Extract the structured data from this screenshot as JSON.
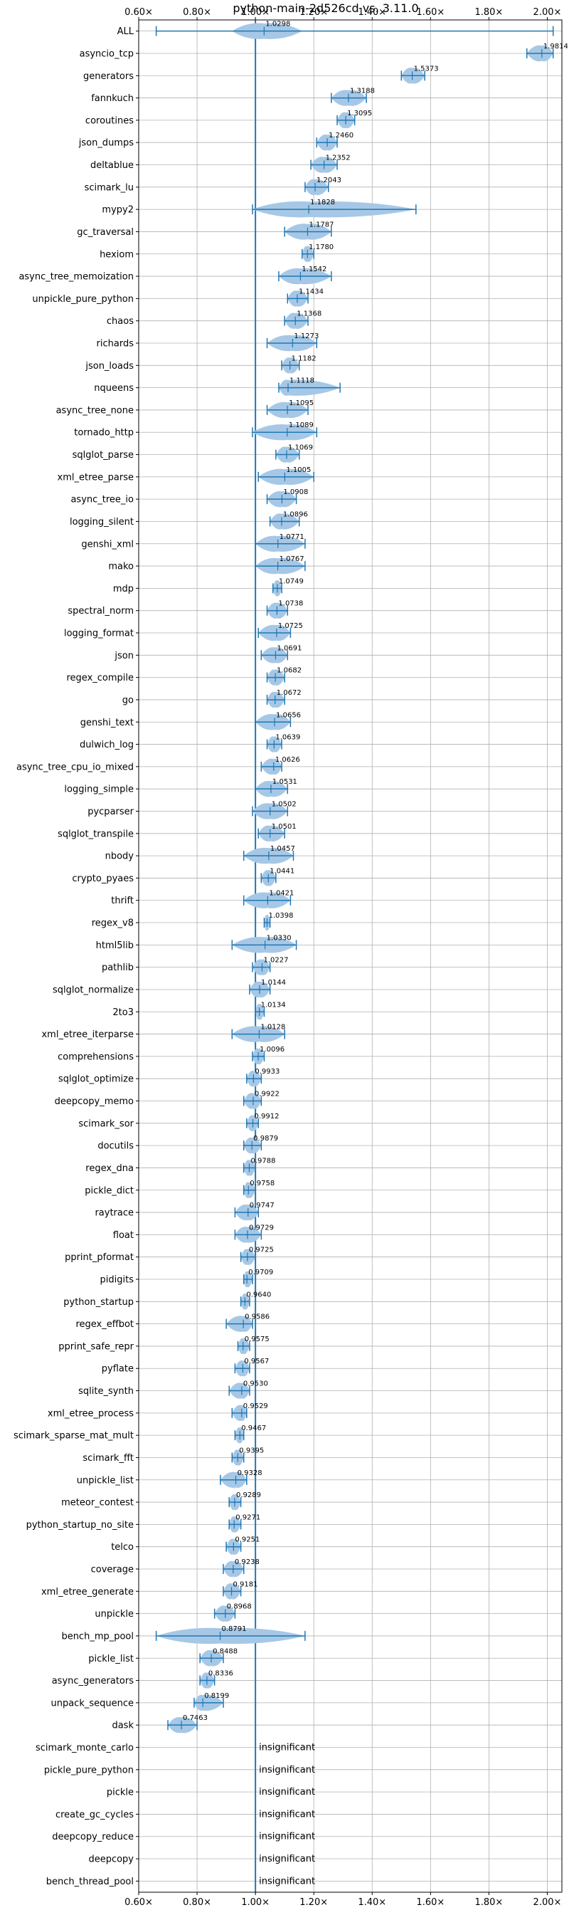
{
  "chart_data": {
    "type": "violin",
    "title": "python-main-2d526cd vs. 3.11.0",
    "xlabel": "",
    "ylabel": "",
    "xlim": [
      0.6,
      2.05
    ],
    "xticks": [
      0.6,
      0.8,
      1.0,
      1.2,
      1.4,
      1.6,
      1.8,
      2.0
    ],
    "xtick_labels": [
      "0.60×",
      "0.80×",
      "1.00×",
      "1.20×",
      "1.40×",
      "1.60×",
      "1.80×",
      "2.00×"
    ],
    "xticks_on_top": true,
    "reference_line": 1.0,
    "grid": true,
    "colors": {
      "violin": "#a6c8e6",
      "whisker": "#1f77b4",
      "reference": "#1f77b4",
      "grid": "#b0b0b0"
    },
    "insignificant_label": "insignificant",
    "benchmarks": [
      {
        "name": "ALL",
        "label": "1.0298",
        "median": 1.0298,
        "min": 0.66,
        "max": 2.02,
        "q1": 0.92,
        "q3": 1.16
      },
      {
        "name": "asyncio_tcp",
        "label": "1.9814",
        "median": 1.9814,
        "min": 1.93,
        "max": 2.02
      },
      {
        "name": "generators",
        "label": "1.5373",
        "median": 1.5373,
        "min": 1.5,
        "max": 1.58
      },
      {
        "name": "fannkuch",
        "label": "1.3188",
        "median": 1.3188,
        "min": 1.26,
        "max": 1.38
      },
      {
        "name": "coroutines",
        "label": "1.3095",
        "median": 1.3095,
        "min": 1.28,
        "max": 1.34
      },
      {
        "name": "json_dumps",
        "label": "1.2460",
        "median": 1.246,
        "min": 1.21,
        "max": 1.28
      },
      {
        "name": "deltablue",
        "label": "1.2352",
        "median": 1.2352,
        "min": 1.19,
        "max": 1.28
      },
      {
        "name": "scimark_lu",
        "label": "1.2043",
        "median": 1.2043,
        "min": 1.17,
        "max": 1.25
      },
      {
        "name": "mypy2",
        "label": "1.1828",
        "median": 1.1828,
        "min": 0.99,
        "max": 1.55
      },
      {
        "name": "gc_traversal",
        "label": "1.1787",
        "median": 1.1787,
        "min": 1.1,
        "max": 1.26
      },
      {
        "name": "hexiom",
        "label": "1.1780",
        "median": 1.178,
        "min": 1.16,
        "max": 1.2
      },
      {
        "name": "async_tree_memoization",
        "label": "1.1542",
        "median": 1.1542,
        "min": 1.08,
        "max": 1.26
      },
      {
        "name": "unpickle_pure_python",
        "label": "1.1434",
        "median": 1.1434,
        "min": 1.11,
        "max": 1.18
      },
      {
        "name": "chaos",
        "label": "1.1368",
        "median": 1.1368,
        "min": 1.1,
        "max": 1.18
      },
      {
        "name": "richards",
        "label": "1.1273",
        "median": 1.1273,
        "min": 1.04,
        "max": 1.21
      },
      {
        "name": "json_loads",
        "label": "1.1182",
        "median": 1.1182,
        "min": 1.09,
        "max": 1.15
      },
      {
        "name": "nqueens",
        "label": "1.1118",
        "median": 1.1118,
        "min": 1.08,
        "max": 1.29
      },
      {
        "name": "async_tree_none",
        "label": "1.1095",
        "median": 1.1095,
        "min": 1.04,
        "max": 1.18
      },
      {
        "name": "tornado_http",
        "label": "1.1089",
        "median": 1.1089,
        "min": 0.99,
        "max": 1.21
      },
      {
        "name": "sqlglot_parse",
        "label": "1.1069",
        "median": 1.1069,
        "min": 1.07,
        "max": 1.15
      },
      {
        "name": "xml_etree_parse",
        "label": "1.1005",
        "median": 1.1005,
        "min": 1.01,
        "max": 1.2
      },
      {
        "name": "async_tree_io",
        "label": "1.0908",
        "median": 1.0908,
        "min": 1.04,
        "max": 1.14
      },
      {
        "name": "logging_silent",
        "label": "1.0896",
        "median": 1.0896,
        "min": 1.05,
        "max": 1.15
      },
      {
        "name": "genshi_xml",
        "label": "1.0771",
        "median": 1.0771,
        "min": 1.0,
        "max": 1.17
      },
      {
        "name": "mako",
        "label": "1.0767",
        "median": 1.0767,
        "min": 1.0,
        "max": 1.17
      },
      {
        "name": "mdp",
        "label": "1.0749",
        "median": 1.0749,
        "min": 1.06,
        "max": 1.09
      },
      {
        "name": "spectral_norm",
        "label": "1.0738",
        "median": 1.0738,
        "min": 1.04,
        "max": 1.11
      },
      {
        "name": "logging_format",
        "label": "1.0725",
        "median": 1.0725,
        "min": 1.01,
        "max": 1.12
      },
      {
        "name": "json",
        "label": "1.0691",
        "median": 1.0691,
        "min": 1.02,
        "max": 1.11
      },
      {
        "name": "regex_compile",
        "label": "1.0682",
        "median": 1.0682,
        "min": 1.04,
        "max": 1.1
      },
      {
        "name": "go",
        "label": "1.0672",
        "median": 1.0672,
        "min": 1.04,
        "max": 1.1
      },
      {
        "name": "genshi_text",
        "label": "1.0656",
        "median": 1.0656,
        "min": 1.0,
        "max": 1.12
      },
      {
        "name": "dulwich_log",
        "label": "1.0639",
        "median": 1.0639,
        "min": 1.04,
        "max": 1.09
      },
      {
        "name": "async_tree_cpu_io_mixed",
        "label": "1.0626",
        "median": 1.0626,
        "min": 1.02,
        "max": 1.09
      },
      {
        "name": "logging_simple",
        "label": "1.0531",
        "median": 1.0531,
        "min": 1.0,
        "max": 1.11
      },
      {
        "name": "pycparser",
        "label": "1.0502",
        "median": 1.0502,
        "min": 0.99,
        "max": 1.11
      },
      {
        "name": "sqlglot_transpile",
        "label": "1.0501",
        "median": 1.0501,
        "min": 1.01,
        "max": 1.1
      },
      {
        "name": "nbody",
        "label": "1.0457",
        "median": 1.0457,
        "min": 0.96,
        "max": 1.13
      },
      {
        "name": "crypto_pyaes",
        "label": "1.0441",
        "median": 1.0441,
        "min": 1.02,
        "max": 1.07
      },
      {
        "name": "thrift",
        "label": "1.0421",
        "median": 1.0421,
        "min": 0.96,
        "max": 1.12
      },
      {
        "name": "regex_v8",
        "label": "1.0398",
        "median": 1.0398,
        "min": 1.03,
        "max": 1.05
      },
      {
        "name": "html5lib",
        "label": "1.0330",
        "median": 1.033,
        "min": 0.92,
        "max": 1.14
      },
      {
        "name": "pathlib",
        "label": "1.0227",
        "median": 1.0227,
        "min": 0.99,
        "max": 1.05
      },
      {
        "name": "sqlglot_normalize",
        "label": "1.0144",
        "median": 1.0144,
        "min": 0.98,
        "max": 1.05
      },
      {
        "name": "2to3",
        "label": "1.0134",
        "median": 1.0134,
        "min": 1.0,
        "max": 1.03
      },
      {
        "name": "xml_etree_iterparse",
        "label": "1.0128",
        "median": 1.0128,
        "min": 0.92,
        "max": 1.1
      },
      {
        "name": "comprehensions",
        "label": "1.0096",
        "median": 1.0096,
        "min": 0.99,
        "max": 1.03
      },
      {
        "name": "sqlglot_optimize",
        "label": "0.9933",
        "median": 0.9933,
        "min": 0.97,
        "max": 1.02
      },
      {
        "name": "deepcopy_memo",
        "label": "0.9922",
        "median": 0.9922,
        "min": 0.96,
        "max": 1.02
      },
      {
        "name": "scimark_sor",
        "label": "0.9912",
        "median": 0.9912,
        "min": 0.97,
        "max": 1.01
      },
      {
        "name": "docutils",
        "label": "0.9879",
        "median": 0.9879,
        "min": 0.96,
        "max": 1.02
      },
      {
        "name": "regex_dna",
        "label": "0.9788",
        "median": 0.9788,
        "min": 0.96,
        "max": 1.0
      },
      {
        "name": "pickle_dict",
        "label": "0.9758",
        "median": 0.9758,
        "min": 0.96,
        "max": 1.0
      },
      {
        "name": "raytrace",
        "label": "0.9747",
        "median": 0.9747,
        "min": 0.93,
        "max": 1.01
      },
      {
        "name": "float",
        "label": "0.9729",
        "median": 0.9729,
        "min": 0.93,
        "max": 1.02
      },
      {
        "name": "pprint_pformat",
        "label": "0.9725",
        "median": 0.9725,
        "min": 0.95,
        "max": 1.0
      },
      {
        "name": "pidigits",
        "label": "0.9709",
        "median": 0.9709,
        "min": 0.96,
        "max": 0.99
      },
      {
        "name": "python_startup",
        "label": "0.9640",
        "median": 0.964,
        "min": 0.95,
        "max": 0.98
      },
      {
        "name": "regex_effbot",
        "label": "0.9586",
        "median": 0.9586,
        "min": 0.9,
        "max": 0.99
      },
      {
        "name": "pprint_safe_repr",
        "label": "0.9575",
        "median": 0.9575,
        "min": 0.94,
        "max": 0.98
      },
      {
        "name": "pyflate",
        "label": "0.9567",
        "median": 0.9567,
        "min": 0.93,
        "max": 0.98
      },
      {
        "name": "sqlite_synth",
        "label": "0.9530",
        "median": 0.953,
        "min": 0.91,
        "max": 0.98
      },
      {
        "name": "xml_etree_process",
        "label": "0.9529",
        "median": 0.9529,
        "min": 0.92,
        "max": 0.97
      },
      {
        "name": "scimark_sparse_mat_mult",
        "label": "0.9467",
        "median": 0.9467,
        "min": 0.93,
        "max": 0.96
      },
      {
        "name": "scimark_fft",
        "label": "0.9395",
        "median": 0.9395,
        "min": 0.92,
        "max": 0.96
      },
      {
        "name": "unpickle_list",
        "label": "0.9328",
        "median": 0.9328,
        "min": 0.88,
        "max": 0.97
      },
      {
        "name": "meteor_contest",
        "label": "0.9289",
        "median": 0.9289,
        "min": 0.91,
        "max": 0.95
      },
      {
        "name": "python_startup_no_site",
        "label": "0.9271",
        "median": 0.9271,
        "min": 0.91,
        "max": 0.95
      },
      {
        "name": "telco",
        "label": "0.9251",
        "median": 0.9251,
        "min": 0.9,
        "max": 0.95
      },
      {
        "name": "coverage",
        "label": "0.9238",
        "median": 0.9238,
        "min": 0.89,
        "max": 0.96
      },
      {
        "name": "xml_etree_generate",
        "label": "0.9181",
        "median": 0.9181,
        "min": 0.89,
        "max": 0.95
      },
      {
        "name": "unpickle",
        "label": "0.8968",
        "median": 0.8968,
        "min": 0.86,
        "max": 0.93
      },
      {
        "name": "bench_mp_pool",
        "label": "0.8791",
        "median": 0.8791,
        "min": 0.66,
        "max": 1.17
      },
      {
        "name": "pickle_list",
        "label": "0.8488",
        "median": 0.8488,
        "min": 0.81,
        "max": 0.89
      },
      {
        "name": "async_generators",
        "label": "0.8336",
        "median": 0.8336,
        "min": 0.81,
        "max": 0.86
      },
      {
        "name": "unpack_sequence",
        "label": "0.8199",
        "median": 0.8199,
        "min": 0.79,
        "max": 0.89
      },
      {
        "name": "dask",
        "label": "0.7463",
        "median": 0.7463,
        "min": 0.7,
        "max": 0.8
      },
      {
        "name": "scimark_monte_carlo",
        "insignificant": true
      },
      {
        "name": "pickle_pure_python",
        "insignificant": true
      },
      {
        "name": "pickle",
        "insignificant": true
      },
      {
        "name": "create_gc_cycles",
        "insignificant": true
      },
      {
        "name": "deepcopy_reduce",
        "insignificant": true
      },
      {
        "name": "deepcopy",
        "insignificant": true
      },
      {
        "name": "bench_thread_pool",
        "insignificant": true
      }
    ]
  }
}
